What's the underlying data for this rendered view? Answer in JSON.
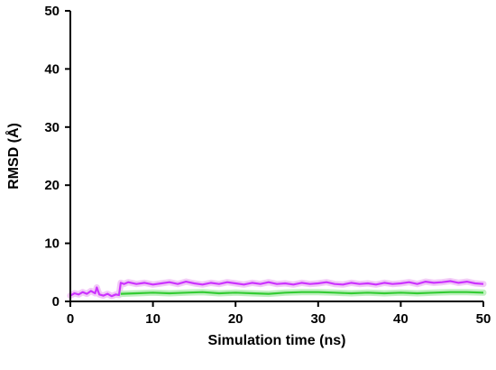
{
  "chart_data": {
    "type": "line",
    "xlabel": "Simulation time (ns)",
    "ylabel": "RMSD (Å)",
    "xlim": [
      0,
      50
    ],
    "ylim": [
      0,
      50
    ],
    "xticks": [
      0,
      10,
      20,
      30,
      40,
      50
    ],
    "yticks": [
      0,
      10,
      20,
      30,
      40,
      50
    ],
    "grid": false,
    "legend": "none",
    "series": [
      {
        "color": "#cc33ff",
        "band_color": "#f2c9f7",
        "x": [
          0,
          0.5,
          1,
          1.5,
          2,
          2.5,
          3,
          3.2,
          3.5,
          4,
          4.5,
          5,
          5.5,
          5.9,
          6.1,
          6.5,
          7,
          8,
          9,
          10,
          11,
          12,
          13,
          14,
          15,
          16,
          17,
          18,
          19,
          20,
          21,
          22,
          23,
          24,
          25,
          26,
          27,
          28,
          29,
          30,
          31,
          32,
          33,
          34,
          35,
          36,
          37,
          38,
          39,
          40,
          41,
          42,
          43,
          44,
          45,
          46,
          47,
          48,
          49,
          50
        ],
        "values": [
          1.0,
          1.4,
          1.2,
          1.6,
          1.3,
          1.8,
          1.4,
          2.4,
          1.2,
          1.0,
          1.3,
          0.9,
          1.2,
          1.1,
          3.2,
          3.0,
          3.3,
          3.0,
          3.2,
          2.9,
          3.1,
          3.3,
          3.0,
          3.4,
          3.1,
          2.9,
          3.2,
          3.0,
          3.3,
          3.1,
          2.9,
          3.2,
          3.0,
          3.3,
          3.0,
          3.1,
          2.9,
          3.2,
          3.0,
          3.1,
          3.3,
          3.0,
          2.9,
          3.2,
          3.0,
          3.1,
          2.9,
          3.2,
          3.0,
          3.1,
          3.3,
          3.0,
          3.4,
          3.2,
          3.3,
          3.5,
          3.2,
          3.4,
          3.1,
          3.0
        ]
      },
      {
        "color": "#33cc33",
        "band_color": "#c2f0c2",
        "x": [
          6.1,
          8,
          10,
          12,
          14,
          16,
          18,
          20,
          22,
          24,
          26,
          28,
          30,
          32,
          34,
          36,
          38,
          40,
          42,
          44,
          46,
          48,
          50
        ],
        "values": [
          1.3,
          1.4,
          1.5,
          1.4,
          1.5,
          1.6,
          1.4,
          1.5,
          1.4,
          1.3,
          1.5,
          1.6,
          1.6,
          1.5,
          1.4,
          1.5,
          1.4,
          1.5,
          1.4,
          1.5,
          1.6,
          1.6,
          1.5
        ]
      }
    ]
  }
}
